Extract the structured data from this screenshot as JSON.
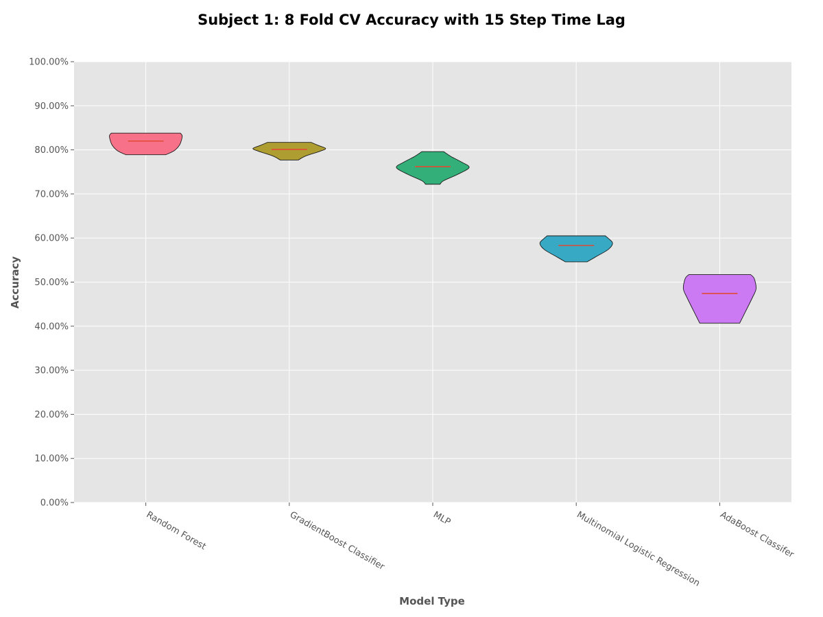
{
  "chart_data": {
    "type": "violin",
    "title": "Subject 1: 8 Fold CV Accuracy with 15 Step Time Lag",
    "xlabel": "Model Type",
    "ylabel": "Accuracy",
    "ylim": [
      0,
      100
    ],
    "yticks": [
      "0.00%",
      "10.00%",
      "20.00%",
      "30.00%",
      "40.00%",
      "50.00%",
      "60.00%",
      "70.00%",
      "80.00%",
      "90.00%",
      "100.00%"
    ],
    "grid": true,
    "categories": [
      "Random Forest",
      "GradientBoost Classifier",
      "MLP",
      "Multinomial Logistic Regression",
      "AdaBoost Classifer"
    ],
    "series": [
      {
        "category": "Random Forest",
        "min": 78.9,
        "max": 83.8,
        "median": 82.0,
        "color": "#f77189",
        "profile": [
          [
            78.9,
            0.55
          ],
          [
            79.8,
            0.78
          ],
          [
            81.0,
            0.92
          ],
          [
            82.2,
            0.98
          ],
          [
            83.2,
            1.0
          ],
          [
            83.8,
            0.95
          ]
        ]
      },
      {
        "category": "GradientBoost Classifier",
        "min": 77.7,
        "max": 81.7,
        "median": 80.1,
        "color": "#ae9d31",
        "profile": [
          [
            77.7,
            0.25
          ],
          [
            78.6,
            0.45
          ],
          [
            79.7,
            0.85
          ],
          [
            80.3,
            1.0
          ],
          [
            81.0,
            0.8
          ],
          [
            81.7,
            0.6
          ]
        ]
      },
      {
        "category": "MLP",
        "min": 72.2,
        "max": 79.6,
        "median": 76.2,
        "color": "#33b07a",
        "profile": [
          [
            72.2,
            0.2
          ],
          [
            73.0,
            0.3
          ],
          [
            74.5,
            0.7
          ],
          [
            76.0,
            1.0
          ],
          [
            77.2,
            0.8
          ],
          [
            78.5,
            0.5
          ],
          [
            79.6,
            0.3
          ]
        ]
      },
      {
        "category": "Multinomial Logistic Regression",
        "min": 54.6,
        "max": 60.5,
        "median": 58.3,
        "color": "#38a9c5",
        "profile": [
          [
            54.6,
            0.3
          ],
          [
            55.8,
            0.55
          ],
          [
            57.4,
            0.88
          ],
          [
            58.8,
            1.0
          ],
          [
            59.8,
            0.9
          ],
          [
            60.5,
            0.8
          ]
        ]
      },
      {
        "category": "AdaBoost Classifer",
        "min": 40.7,
        "max": 51.7,
        "median": 47.4,
        "color": "#cc7af4",
        "profile": [
          [
            40.7,
            0.55
          ],
          [
            43.5,
            0.72
          ],
          [
            46.5,
            0.9
          ],
          [
            48.5,
            1.0
          ],
          [
            50.8,
            0.95
          ],
          [
            51.7,
            0.85
          ]
        ]
      }
    ],
    "median_color": "#e24a33",
    "plot_background": "#e5e5e5"
  }
}
